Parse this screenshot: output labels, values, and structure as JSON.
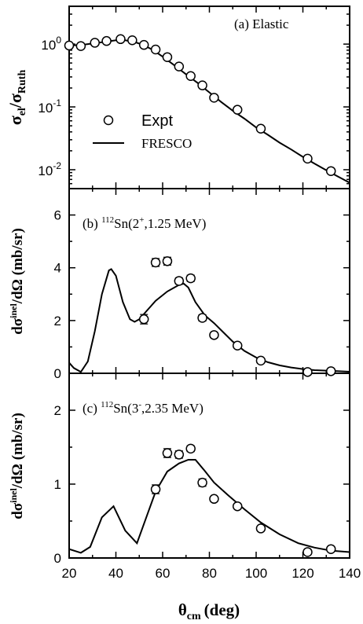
{
  "figure": {
    "xlabel_main": "θ",
    "xlabel_sub": "cm",
    "xlabel_unit": "(deg)",
    "x_ticks": [
      "20",
      "40",
      "60",
      "80",
      "100",
      "120",
      "140"
    ],
    "xlim": [
      20,
      140
    ]
  },
  "chart_data": [
    {
      "type": "scatter",
      "panel_label": "(a) Elastic",
      "ylabel": "σel/σRuth",
      "yscale": "log",
      "ylim": [
        0.005,
        4
      ],
      "y_ticks": [
        {
          "value": 1,
          "base": "10",
          "exp": "0"
        },
        {
          "value": 0.1,
          "base": "10",
          "exp": "-1"
        },
        {
          "value": 0.01,
          "base": "10",
          "exp": "-2"
        }
      ],
      "legend": {
        "position": "lower-left",
        "entries": [
          {
            "label": "Expt",
            "marker": "circle"
          },
          {
            "label": "FRESCO",
            "marker": "line"
          }
        ]
      },
      "series": [
        {
          "name": "Expt",
          "points": [
            [
              20,
              0.95
            ],
            [
              25,
              0.93
            ],
            [
              31,
              1.05
            ],
            [
              36,
              1.12
            ],
            [
              42,
              1.2
            ],
            [
              47,
              1.15
            ],
            [
              52,
              0.97
            ],
            [
              57,
              0.82
            ],
            [
              62,
              0.62
            ],
            [
              67,
              0.44
            ],
            [
              72,
              0.31
            ],
            [
              77,
              0.22
            ],
            [
              82,
              0.14
            ],
            [
              92,
              0.09
            ],
            [
              102,
              0.045
            ],
            [
              122,
              0.015
            ],
            [
              132,
              0.0095
            ]
          ]
        },
        {
          "name": "FRESCO",
          "points": [
            [
              20,
              0.95
            ],
            [
              25,
              0.97
            ],
            [
              30,
              1.02
            ],
            [
              35,
              1.08
            ],
            [
              40,
              1.15
            ],
            [
              44,
              1.15
            ],
            [
              48,
              1.08
            ],
            [
              52,
              0.96
            ],
            [
              56,
              0.8
            ],
            [
              60,
              0.63
            ],
            [
              65,
              0.46
            ],
            [
              70,
              0.33
            ],
            [
              75,
              0.24
            ],
            [
              80,
              0.17
            ],
            [
              85,
              0.12
            ],
            [
              90,
              0.087
            ],
            [
              95,
              0.065
            ],
            [
              100,
              0.047
            ],
            [
              105,
              0.036
            ],
            [
              110,
              0.027
            ],
            [
              115,
              0.021
            ],
            [
              120,
              0.016
            ],
            [
              125,
              0.0125
            ],
            [
              130,
              0.0098
            ],
            [
              135,
              0.0078
            ],
            [
              140,
              0.0062
            ]
          ]
        }
      ]
    },
    {
      "type": "scatter",
      "panel_label_prefix": "(b) ",
      "panel_label_mass": "112",
      "panel_label_body": "Sn(2",
      "panel_label_sup": "+",
      "panel_label_tail": ",1.25 MeV)",
      "ylabel": "dσinel/dΩ (mb/sr)",
      "ylim": [
        0,
        7
      ],
      "y_ticks": [
        "0",
        "2",
        "4",
        "6"
      ],
      "series": [
        {
          "name": "Expt",
          "points": [
            [
              52,
              2.05
            ],
            [
              57,
              4.2
            ],
            [
              62,
              4.25
            ],
            [
              67,
              3.5
            ],
            [
              72,
              3.6
            ],
            [
              77,
              2.1
            ],
            [
              82,
              1.45
            ],
            [
              92,
              1.05
            ],
            [
              102,
              0.48
            ],
            [
              122,
              0.05
            ],
            [
              132,
              0.08
            ]
          ],
          "errors": [
            0.18,
            0.15,
            0.15,
            0.12,
            0.12,
            0.12,
            0.1,
            0.08,
            0.06,
            0.05,
            0.05
          ]
        },
        {
          "name": "FRESCO",
          "points": [
            [
              20,
              0.4
            ],
            [
              22,
              0.2
            ],
            [
              25,
              0.05
            ],
            [
              28,
              0.45
            ],
            [
              31,
              1.6
            ],
            [
              34,
              3.0
            ],
            [
              37,
              3.9
            ],
            [
              38,
              3.95
            ],
            [
              40,
              3.7
            ],
            [
              43,
              2.7
            ],
            [
              46,
              2.05
            ],
            [
              48,
              1.95
            ],
            [
              50,
              2.05
            ],
            [
              53,
              2.35
            ],
            [
              57,
              2.75
            ],
            [
              62,
              3.1
            ],
            [
              67,
              3.35
            ],
            [
              69,
              3.4
            ],
            [
              71,
              3.25
            ],
            [
              74,
              2.7
            ],
            [
              78,
              2.2
            ],
            [
              82,
              1.9
            ],
            [
              86,
              1.55
            ],
            [
              90,
              1.2
            ],
            [
              95,
              0.85
            ],
            [
              100,
              0.6
            ],
            [
              105,
              0.42
            ],
            [
              110,
              0.3
            ],
            [
              115,
              0.22
            ],
            [
              120,
              0.16
            ],
            [
              125,
              0.12
            ],
            [
              130,
              0.1
            ],
            [
              135,
              0.08
            ],
            [
              140,
              0.06
            ]
          ]
        }
      ]
    },
    {
      "type": "scatter",
      "panel_label_prefix": "(c) ",
      "panel_label_mass": "112",
      "panel_label_body": "Sn(3",
      "panel_label_sup": "-",
      "panel_label_tail": ",2.35 MeV)",
      "ylabel": "dσinel/dΩ (mb/sr)",
      "ylim": [
        0,
        2.5
      ],
      "y_ticks": [
        "0",
        "1",
        "2"
      ],
      "series": [
        {
          "name": "Expt",
          "points": [
            [
              57,
              0.93
            ],
            [
              62,
              1.42
            ],
            [
              67,
              1.4
            ],
            [
              72,
              1.48
            ],
            [
              77,
              1.02
            ],
            [
              82,
              0.8
            ],
            [
              92,
              0.7
            ],
            [
              102,
              0.4
            ],
            [
              122,
              0.08
            ],
            [
              132,
              0.12
            ]
          ],
          "errors": [
            0.06,
            0.06,
            0.05,
            0.04,
            0.05,
            0.03,
            0.03,
            0.03,
            0.03,
            0.03
          ]
        },
        {
          "name": "FRESCO",
          "points": [
            [
              20,
              0.12
            ],
            [
              25,
              0.07
            ],
            [
              29,
              0.15
            ],
            [
              34,
              0.55
            ],
            [
              39,
              0.7
            ],
            [
              44,
              0.37
            ],
            [
              49,
              0.2
            ],
            [
              53,
              0.55
            ],
            [
              57,
              0.9
            ],
            [
              62,
              1.17
            ],
            [
              67,
              1.28
            ],
            [
              71,
              1.33
            ],
            [
              74,
              1.33
            ],
            [
              78,
              1.18
            ],
            [
              82,
              1.02
            ],
            [
              88,
              0.85
            ],
            [
              95,
              0.66
            ],
            [
              102,
              0.48
            ],
            [
              110,
              0.32
            ],
            [
              118,
              0.2
            ],
            [
              125,
              0.14
            ],
            [
              132,
              0.1
            ],
            [
              140,
              0.08
            ]
          ]
        }
      ]
    }
  ]
}
